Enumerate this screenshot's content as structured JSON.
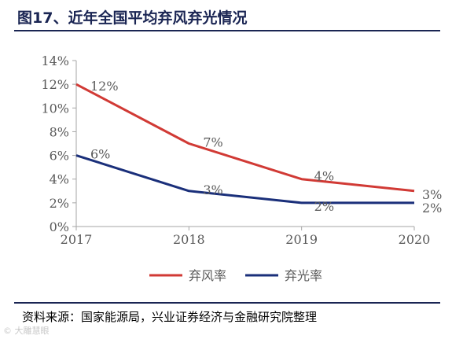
{
  "figure": {
    "title": "图17、近年全国平均弃风弃光情况",
    "source": "资料来源：国家能源局，兴业证券经济与金融研究院整理",
    "watermark": "© 大雕慧眼"
  },
  "colors": {
    "wind": "#d13a35",
    "solar": "#1a2f7a",
    "axis": "#a6a6a6",
    "text": "#595959",
    "header": "#1a2553"
  },
  "chart_data": {
    "type": "line",
    "title": "",
    "xlabel": "",
    "ylabel": "",
    "x": [
      "2017",
      "2018",
      "2019",
      "2020"
    ],
    "ylim": [
      0,
      14
    ],
    "yticks": [
      0,
      2,
      4,
      6,
      8,
      10,
      12,
      14
    ],
    "ytick_labels": [
      "0%",
      "2%",
      "4%",
      "6%",
      "8%",
      "10%",
      "12%",
      "14%"
    ],
    "grid": false,
    "legend_position": "bottom",
    "series": [
      {
        "name": "弃风率",
        "color": "#d13a35",
        "values": [
          12,
          7,
          4,
          3
        ],
        "labels": [
          "12%",
          "7%",
          "4%",
          "3%"
        ]
      },
      {
        "name": "弃光率",
        "color": "#1a2f7a",
        "values": [
          6,
          3,
          2,
          2
        ],
        "labels": [
          "6%",
          "3%",
          "2%",
          "2%"
        ]
      }
    ]
  }
}
